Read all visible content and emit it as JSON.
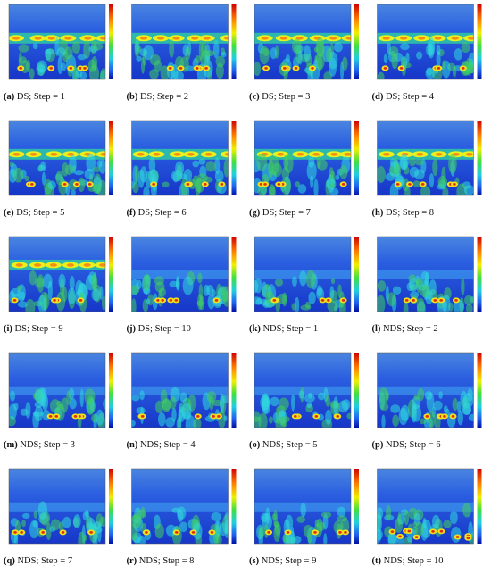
{
  "panels": [
    {
      "label": "(a)",
      "text": "DS; Step = 1"
    },
    {
      "label": "(b)",
      "text": "DS; Step = 2"
    },
    {
      "label": "(c)",
      "text": "DS; Step = 3"
    },
    {
      "label": "(d)",
      "text": "DS; Step = 4"
    },
    {
      "label": "(e)",
      "text": "DS; Step = 5"
    },
    {
      "label": "(f)",
      "text": "DS; Step = 6"
    },
    {
      "label": "(g)",
      "text": "DS; Step = 7"
    },
    {
      "label": "(h)",
      "text": "DS; Step = 8"
    },
    {
      "label": "(i)",
      "text": "DS; Step = 9"
    },
    {
      "label": "(j)",
      "text": "DS; Step = 10"
    },
    {
      "label": "(k)",
      "text": "NDS; Step = 1"
    },
    {
      "label": "(l)",
      "text": "NDS; Step = 2"
    },
    {
      "label": "(m)",
      "text": "NDS; Step = 3"
    },
    {
      "label": "(n)",
      "text": "NDS; Step = 4"
    },
    {
      "label": "(o)",
      "text": "NDS; Step = 5"
    },
    {
      "label": "(p)",
      "text": "NDS; Step = 6"
    },
    {
      "label": "(q)",
      "text": "NDS; Step = 7"
    },
    {
      "label": "(r)",
      "text": "NDS; Step = 8"
    },
    {
      "label": "(s)",
      "text": "NDS; Step = 9"
    },
    {
      "label": "(t)",
      "text": "NDS; Step = 10"
    }
  ]
}
